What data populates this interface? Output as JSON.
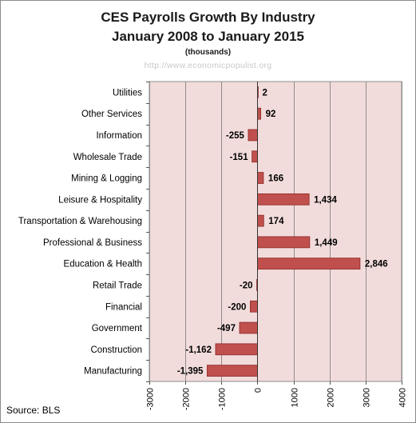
{
  "title_line1": "CES Payrolls Growth By Industry",
  "title_line2": "January 2008 to January 2015",
  "subtitle": "(thousands)",
  "watermark": "http://www.economicpopulist.org",
  "source": "Source:  BLS",
  "colors": {
    "bar": "#c0504d",
    "bar_stroke": "#8b2a28",
    "plot_bg": "#f2dcdb",
    "grid": "#8c8c8c"
  },
  "chart_data": {
    "type": "bar",
    "orientation": "horizontal",
    "categories": [
      "Utilities",
      "Other Services",
      "Information",
      "Wholesale Trade",
      "Mining & Logging",
      "Leisure & Hospitality",
      "Transportation & Warehousing",
      "Professional & Business",
      "Education & Health",
      "Retail Trade",
      "Financial",
      "Government",
      "Construction",
      "Manufacturing"
    ],
    "values": [
      2,
      92,
      -255,
      -151,
      166,
      1434,
      174,
      1449,
      2846,
      -20,
      -200,
      -497,
      -1162,
      -1395
    ],
    "value_labels": [
      "2",
      "92",
      "-255",
      "-151",
      "166",
      "1,434",
      "174",
      "1,449",
      "2,846",
      "-20",
      "-200",
      "-497",
      "-1,162",
      "-1,395"
    ],
    "xlim": [
      -3000,
      4000
    ],
    "xticks": [
      -3000,
      -2000,
      -1000,
      0,
      1000,
      2000,
      3000,
      4000
    ],
    "xtick_labels": [
      "-3000",
      "-2000",
      "-1000",
      "0",
      "1000",
      "2000",
      "3000",
      "4000"
    ],
    "gridlines": "vertical",
    "legend": "none"
  }
}
